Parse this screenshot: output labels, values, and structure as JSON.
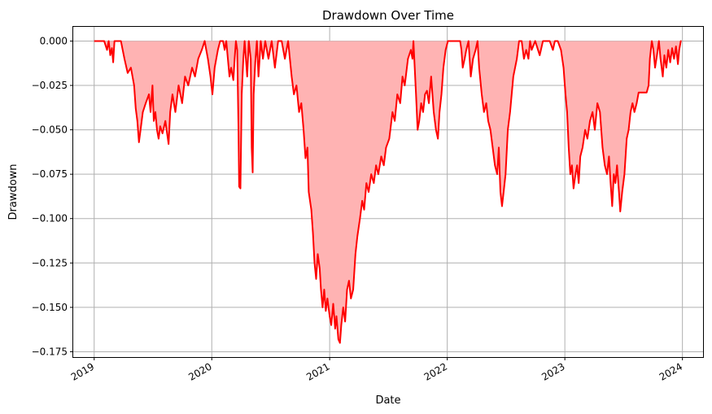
{
  "chart_data": {
    "type": "area",
    "title": "Drawdown Over Time",
    "xlabel": "Date",
    "ylabel": "Drawdown",
    "xlim": [
      "2018-10-28",
      "2024-03-05"
    ],
    "ylim": [
      -0.178,
      0.008
    ],
    "x_ticks": [
      "2019-01-01",
      "2020-01-01",
      "2021-01-01",
      "2022-01-01",
      "2023-01-01",
      "2024-01-01"
    ],
    "x_tick_labels": [
      "2019",
      "2020",
      "2021",
      "2022",
      "2023",
      "2024"
    ],
    "y_ticks": [
      0.0,
      -0.025,
      -0.05,
      -0.075,
      -0.1,
      -0.125,
      -0.15,
      -0.175
    ],
    "y_tick_labels": [
      "0.000",
      "−0.025",
      "−0.050",
      "−0.075",
      "−0.100",
      "−0.125",
      "−0.150",
      "−0.175"
    ],
    "grid": true,
    "line_color": "#ff0000",
    "fill_color": "#ffb3b3",
    "series": [
      {
        "points": [
          [
            "2019-01-01",
            0.0
          ],
          [
            "2019-02-01",
            0.0
          ],
          [
            "2019-02-10",
            -0.005
          ],
          [
            "2019-02-15",
            0.0
          ],
          [
            "2019-02-20",
            -0.008
          ],
          [
            "2019-02-25",
            -0.004
          ],
          [
            "2019-03-01",
            -0.012
          ],
          [
            "2019-03-05",
            0.0
          ],
          [
            "2019-03-10",
            0.0
          ],
          [
            "2019-03-25",
            0.0
          ],
          [
            "2019-04-05",
            -0.01
          ],
          [
            "2019-04-15",
            -0.018
          ],
          [
            "2019-04-25",
            -0.015
          ],
          [
            "2019-05-05",
            -0.025
          ],
          [
            "2019-05-10",
            -0.038
          ],
          [
            "2019-05-15",
            -0.045
          ],
          [
            "2019-05-20",
            -0.057
          ],
          [
            "2019-05-25",
            -0.05
          ],
          [
            "2019-06-01",
            -0.04
          ],
          [
            "2019-06-10",
            -0.035
          ],
          [
            "2019-06-20",
            -0.03
          ],
          [
            "2019-06-25",
            -0.04
          ],
          [
            "2019-07-01",
            -0.025
          ],
          [
            "2019-07-05",
            -0.045
          ],
          [
            "2019-07-10",
            -0.04
          ],
          [
            "2019-07-15",
            -0.05
          ],
          [
            "2019-07-20",
            -0.055
          ],
          [
            "2019-07-25",
            -0.048
          ],
          [
            "2019-08-01",
            -0.052
          ],
          [
            "2019-08-10",
            -0.045
          ],
          [
            "2019-08-20",
            -0.058
          ],
          [
            "2019-08-25",
            -0.04
          ],
          [
            "2019-09-01",
            -0.03
          ],
          [
            "2019-09-10",
            -0.04
          ],
          [
            "2019-09-20",
            -0.025
          ],
          [
            "2019-10-01",
            -0.035
          ],
          [
            "2019-10-10",
            -0.02
          ],
          [
            "2019-10-20",
            -0.025
          ],
          [
            "2019-11-01",
            -0.015
          ],
          [
            "2019-11-10",
            -0.02
          ],
          [
            "2019-11-20",
            -0.01
          ],
          [
            "2019-12-01",
            -0.005
          ],
          [
            "2019-12-10",
            0.0
          ],
          [
            "2019-12-20",
            -0.01
          ],
          [
            "2019-12-28",
            -0.02
          ],
          [
            "2020-01-03",
            -0.03
          ],
          [
            "2020-01-10",
            -0.015
          ],
          [
            "2020-01-20",
            -0.005
          ],
          [
            "2020-01-27",
            0.0
          ],
          [
            "2020-02-05",
            0.0
          ],
          [
            "2020-02-10",
            -0.005
          ],
          [
            "2020-02-15",
            0.0
          ],
          [
            "2020-02-20",
            -0.01
          ],
          [
            "2020-02-25",
            -0.02
          ],
          [
            "2020-03-01",
            -0.015
          ],
          [
            "2020-03-08",
            -0.022
          ],
          [
            "2020-03-12",
            -0.01
          ],
          [
            "2020-03-16",
            0.0
          ],
          [
            "2020-03-20",
            -0.005
          ],
          [
            "2020-03-24",
            -0.05
          ],
          [
            "2020-03-26",
            -0.082
          ],
          [
            "2020-03-30",
            -0.083
          ],
          [
            "2020-04-03",
            -0.03
          ],
          [
            "2020-04-08",
            -0.01
          ],
          [
            "2020-04-12",
            0.0
          ],
          [
            "2020-04-20",
            -0.02
          ],
          [
            "2020-04-25",
            0.0
          ],
          [
            "2020-05-01",
            -0.01
          ],
          [
            "2020-05-04",
            -0.06
          ],
          [
            "2020-05-07",
            -0.074
          ],
          [
            "2020-05-10",
            -0.03
          ],
          [
            "2020-05-15",
            -0.012
          ],
          [
            "2020-05-20",
            0.0
          ],
          [
            "2020-05-25",
            -0.02
          ],
          [
            "2020-06-01",
            0.0
          ],
          [
            "2020-06-08",
            -0.01
          ],
          [
            "2020-06-15",
            0.0
          ],
          [
            "2020-06-25",
            -0.01
          ],
          [
            "2020-07-05",
            0.0
          ],
          [
            "2020-07-15",
            -0.015
          ],
          [
            "2020-07-25",
            0.0
          ],
          [
            "2020-08-05",
            0.0
          ],
          [
            "2020-08-15",
            -0.01
          ],
          [
            "2020-08-25",
            0.0
          ],
          [
            "2020-09-05",
            -0.02
          ],
          [
            "2020-09-12",
            -0.03
          ],
          [
            "2020-09-20",
            -0.025
          ],
          [
            "2020-09-28",
            -0.04
          ],
          [
            "2020-10-05",
            -0.035
          ],
          [
            "2020-10-12",
            -0.05
          ],
          [
            "2020-10-18",
            -0.066
          ],
          [
            "2020-10-24",
            -0.06
          ],
          [
            "2020-10-28",
            -0.085
          ],
          [
            "2020-11-01",
            -0.09
          ],
          [
            "2020-11-05",
            -0.095
          ],
          [
            "2020-11-10",
            -0.108
          ],
          [
            "2020-11-15",
            -0.125
          ],
          [
            "2020-11-20",
            -0.134
          ],
          [
            "2020-11-25",
            -0.12
          ],
          [
            "2020-12-01",
            -0.128
          ],
          [
            "2020-12-05",
            -0.14
          ],
          [
            "2020-12-10",
            -0.15
          ],
          [
            "2020-12-15",
            -0.14
          ],
          [
            "2020-12-20",
            -0.152
          ],
          [
            "2020-12-25",
            -0.145
          ],
          [
            "2021-01-01",
            -0.155
          ],
          [
            "2021-01-06",
            -0.16
          ],
          [
            "2021-01-12",
            -0.148
          ],
          [
            "2021-01-18",
            -0.162
          ],
          [
            "2021-01-22",
            -0.155
          ],
          [
            "2021-01-28",
            -0.168
          ],
          [
            "2021-02-02",
            -0.17
          ],
          [
            "2021-02-06",
            -0.16
          ],
          [
            "2021-02-12",
            -0.15
          ],
          [
            "2021-02-18",
            -0.158
          ],
          [
            "2021-02-24",
            -0.14
          ],
          [
            "2021-03-02",
            -0.135
          ],
          [
            "2021-03-08",
            -0.145
          ],
          [
            "2021-03-15",
            -0.14
          ],
          [
            "2021-03-22",
            -0.12
          ],
          [
            "2021-03-28",
            -0.11
          ],
          [
            "2021-04-05",
            -0.1
          ],
          [
            "2021-04-12",
            -0.09
          ],
          [
            "2021-04-18",
            -0.095
          ],
          [
            "2021-04-25",
            -0.08
          ],
          [
            "2021-05-02",
            -0.085
          ],
          [
            "2021-05-10",
            -0.075
          ],
          [
            "2021-05-18",
            -0.08
          ],
          [
            "2021-05-25",
            -0.07
          ],
          [
            "2021-06-01",
            -0.075
          ],
          [
            "2021-06-10",
            -0.065
          ],
          [
            "2021-06-18",
            -0.07
          ],
          [
            "2021-06-25",
            -0.06
          ],
          [
            "2021-07-05",
            -0.055
          ],
          [
            "2021-07-15",
            -0.04
          ],
          [
            "2021-07-22",
            -0.045
          ],
          [
            "2021-07-30",
            -0.03
          ],
          [
            "2021-08-08",
            -0.035
          ],
          [
            "2021-08-15",
            -0.02
          ],
          [
            "2021-08-22",
            -0.025
          ],
          [
            "2021-09-01",
            -0.01
          ],
          [
            "2021-09-10",
            -0.005
          ],
          [
            "2021-09-15",
            -0.01
          ],
          [
            "2021-09-18",
            0.0
          ],
          [
            "2021-09-22",
            -0.015
          ],
          [
            "2021-09-26",
            -0.03
          ],
          [
            "2021-10-01",
            -0.05
          ],
          [
            "2021-10-06",
            -0.045
          ],
          [
            "2021-10-12",
            -0.035
          ],
          [
            "2021-10-18",
            -0.04
          ],
          [
            "2021-10-24",
            -0.03
          ],
          [
            "2021-10-30",
            -0.028
          ],
          [
            "2021-11-05",
            -0.035
          ],
          [
            "2021-11-12",
            -0.02
          ],
          [
            "2021-11-20",
            -0.04
          ],
          [
            "2021-11-27",
            -0.05
          ],
          [
            "2021-12-03",
            -0.055
          ],
          [
            "2021-12-08",
            -0.04
          ],
          [
            "2021-12-14",
            -0.03
          ],
          [
            "2021-12-20",
            -0.015
          ],
          [
            "2021-12-27",
            -0.005
          ],
          [
            "2022-01-03",
            0.0
          ],
          [
            "2022-01-20",
            0.0
          ],
          [
            "2022-01-28",
            0.0
          ],
          [
            "2022-02-10",
            0.0
          ],
          [
            "2022-02-14",
            -0.005
          ],
          [
            "2022-02-18",
            -0.015
          ],
          [
            "2022-02-24",
            -0.01
          ],
          [
            "2022-03-01",
            -0.005
          ],
          [
            "2022-03-08",
            0.0
          ],
          [
            "2022-03-15",
            -0.02
          ],
          [
            "2022-03-22",
            -0.01
          ],
          [
            "2022-03-30",
            -0.005
          ],
          [
            "2022-04-05",
            0.0
          ],
          [
            "2022-04-10",
            -0.015
          ],
          [
            "2022-04-18",
            -0.03
          ],
          [
            "2022-04-25",
            -0.04
          ],
          [
            "2022-05-02",
            -0.035
          ],
          [
            "2022-05-08",
            -0.045
          ],
          [
            "2022-05-15",
            -0.05
          ],
          [
            "2022-05-22",
            -0.06
          ],
          [
            "2022-05-29",
            -0.07
          ],
          [
            "2022-06-05",
            -0.075
          ],
          [
            "2022-06-10",
            -0.06
          ],
          [
            "2022-06-15",
            -0.085
          ],
          [
            "2022-06-20",
            -0.093
          ],
          [
            "2022-06-25",
            -0.085
          ],
          [
            "2022-07-01",
            -0.075
          ],
          [
            "2022-07-08",
            -0.05
          ],
          [
            "2022-07-15",
            -0.04
          ],
          [
            "2022-07-25",
            -0.02
          ],
          [
            "2022-08-05",
            -0.01
          ],
          [
            "2022-08-12",
            0.0
          ],
          [
            "2022-08-20",
            0.0
          ],
          [
            "2022-08-27",
            -0.01
          ],
          [
            "2022-09-03",
            -0.005
          ],
          [
            "2022-09-10",
            -0.01
          ],
          [
            "2022-09-15",
            0.0
          ],
          [
            "2022-09-20",
            -0.005
          ],
          [
            "2022-10-01",
            0.0
          ],
          [
            "2022-10-15",
            -0.008
          ],
          [
            "2022-10-25",
            0.0
          ],
          [
            "2022-11-05",
            0.0
          ],
          [
            "2022-11-15",
            0.0
          ],
          [
            "2022-11-25",
            -0.005
          ],
          [
            "2022-12-01",
            0.0
          ],
          [
            "2022-12-10",
            0.0
          ],
          [
            "2022-12-20",
            -0.005
          ],
          [
            "2022-12-28",
            -0.015
          ],
          [
            "2023-01-03",
            -0.03
          ],
          [
            "2023-01-08",
            -0.04
          ],
          [
            "2023-01-13",
            -0.06
          ],
          [
            "2023-01-18",
            -0.075
          ],
          [
            "2023-01-23",
            -0.07
          ],
          [
            "2023-01-28",
            -0.083
          ],
          [
            "2023-02-03",
            -0.075
          ],
          [
            "2023-02-08",
            -0.07
          ],
          [
            "2023-02-13",
            -0.08
          ],
          [
            "2023-02-18",
            -0.065
          ],
          [
            "2023-02-25",
            -0.06
          ],
          [
            "2023-03-05",
            -0.05
          ],
          [
            "2023-03-12",
            -0.055
          ],
          [
            "2023-03-20",
            -0.045
          ],
          [
            "2023-03-28",
            -0.04
          ],
          [
            "2023-04-04",
            -0.05
          ],
          [
            "2023-04-12",
            -0.035
          ],
          [
            "2023-04-20",
            -0.04
          ],
          [
            "2023-04-28",
            -0.06
          ],
          [
            "2023-05-05",
            -0.07
          ],
          [
            "2023-05-12",
            -0.075
          ],
          [
            "2023-05-18",
            -0.065
          ],
          [
            "2023-05-23",
            -0.08
          ],
          [
            "2023-05-28",
            -0.093
          ],
          [
            "2023-06-02",
            -0.075
          ],
          [
            "2023-06-07",
            -0.08
          ],
          [
            "2023-06-12",
            -0.07
          ],
          [
            "2023-06-18",
            -0.085
          ],
          [
            "2023-06-22",
            -0.096
          ],
          [
            "2023-06-28",
            -0.085
          ],
          [
            "2023-07-05",
            -0.075
          ],
          [
            "2023-07-12",
            -0.055
          ],
          [
            "2023-07-18",
            -0.05
          ],
          [
            "2023-07-24",
            -0.04
          ],
          [
            "2023-07-30",
            -0.035
          ],
          [
            "2023-08-05",
            -0.04
          ],
          [
            "2023-08-12",
            -0.035
          ],
          [
            "2023-08-18",
            -0.029
          ],
          [
            "2023-09-01",
            -0.029
          ],
          [
            "2023-09-12",
            -0.029
          ],
          [
            "2023-09-18",
            -0.025
          ],
          [
            "2023-09-22",
            -0.01
          ],
          [
            "2023-09-28",
            0.0
          ],
          [
            "2023-10-03",
            -0.005
          ],
          [
            "2023-10-08",
            -0.015
          ],
          [
            "2023-10-14",
            -0.008
          ],
          [
            "2023-10-20",
            0.0
          ],
          [
            "2023-10-25",
            -0.01
          ],
          [
            "2023-11-01",
            -0.02
          ],
          [
            "2023-11-06",
            -0.008
          ],
          [
            "2023-11-12",
            -0.015
          ],
          [
            "2023-11-18",
            -0.005
          ],
          [
            "2023-11-24",
            -0.012
          ],
          [
            "2023-11-30",
            -0.004
          ],
          [
            "2023-12-06",
            -0.01
          ],
          [
            "2023-12-12",
            -0.003
          ],
          [
            "2023-12-18",
            -0.013
          ],
          [
            "2023-12-22",
            -0.005
          ],
          [
            "2023-12-27",
            0.0
          ],
          [
            "2023-12-29",
            0.0
          ]
        ]
      }
    ]
  }
}
